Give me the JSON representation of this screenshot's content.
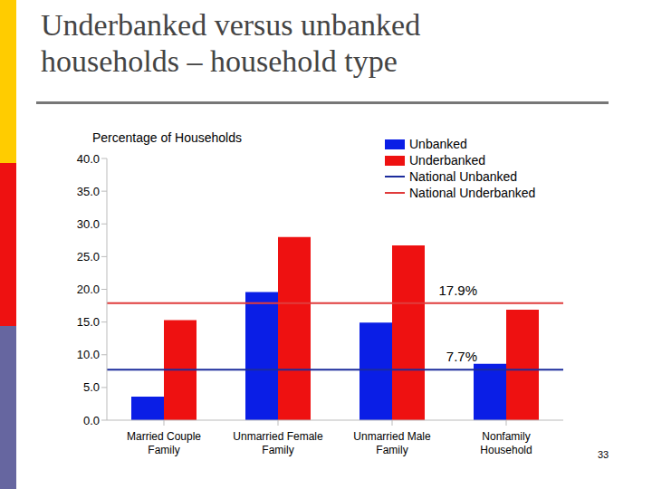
{
  "chart_data": {
    "type": "bar",
    "title": "Underbanked versus unbanked households – household type",
    "y_label": "Percentage of Households",
    "categories": [
      "Married Couple Family",
      "Unmarried Female Family",
      "Unmarried Male Family",
      "Nonfamily Household"
    ],
    "series": [
      {
        "name": "Unbanked",
        "color": "#0a1ee6",
        "values": [
          3.6,
          19.6,
          14.9,
          8.6
        ]
      },
      {
        "name": "Underbanked",
        "color": "#ee1111",
        "values": [
          15.3,
          28.0,
          26.7,
          16.9
        ]
      }
    ],
    "reference_lines": [
      {
        "name": "National Unbanked",
        "value": 7.7,
        "label": "7.7%",
        "color": "#1c2c9c"
      },
      {
        "name": "National Underbanked",
        "value": 17.9,
        "label": "17.9%",
        "color": "#e03c3c"
      }
    ],
    "ylim": [
      0,
      40
    ],
    "yticks": [
      {
        "value": 0,
        "label": "0.0"
      },
      {
        "value": 5,
        "label": "5.0"
      },
      {
        "value": 10,
        "label": "10.0"
      },
      {
        "value": 15,
        "label": "15.0"
      },
      {
        "value": 20,
        "label": "20.0"
      },
      {
        "value": 25,
        "label": "25.0"
      },
      {
        "value": 30,
        "label": "30.0"
      },
      {
        "value": 35,
        "label": "35.0"
      },
      {
        "value": 40,
        "label": "40.0"
      }
    ],
    "grid": false,
    "legend": "top-right"
  },
  "page_number": "33"
}
